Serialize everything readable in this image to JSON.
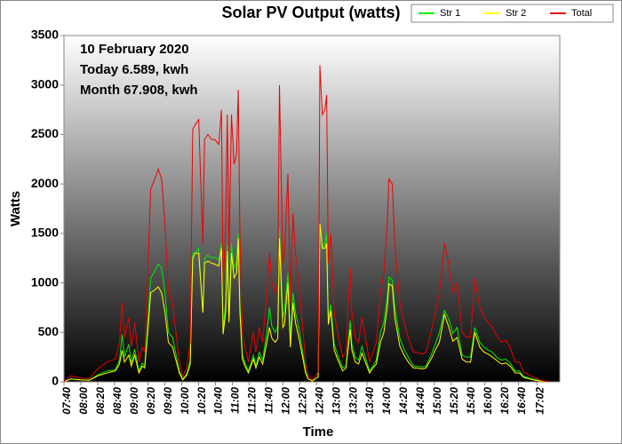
{
  "chart_data": {
    "type": "line",
    "title": "Solar PV Output (watts)",
    "x_label": "Time",
    "y_label": "Watts",
    "annotations": [
      "10 February 2020",
      "Today 6.589, kwh",
      "Month 67.908, kwh"
    ],
    "legend_position": "top-right",
    "background": "gradient",
    "xlim": [
      460,
      1049
    ],
    "ylim": [
      0,
      3500
    ],
    "yticks": [
      0,
      500,
      1000,
      1500,
      2000,
      2500,
      3000,
      3500
    ],
    "xticks": [
      {
        "value": 460,
        "label": "07:40"
      },
      {
        "value": 480,
        "label": "08:00"
      },
      {
        "value": 500,
        "label": "08:20"
      },
      {
        "value": 520,
        "label": "08:40"
      },
      {
        "value": 540,
        "label": "09:00"
      },
      {
        "value": 560,
        "label": "09:20"
      },
      {
        "value": 580,
        "label": "09:40"
      },
      {
        "value": 600,
        "label": "10:00"
      },
      {
        "value": 620,
        "label": "10:20"
      },
      {
        "value": 640,
        "label": "10:40"
      },
      {
        "value": 660,
        "label": "11:00"
      },
      {
        "value": 680,
        "label": "11:20"
      },
      {
        "value": 700,
        "label": "11:40"
      },
      {
        "value": 720,
        "label": "12:00"
      },
      {
        "value": 740,
        "label": "12:20"
      },
      {
        "value": 760,
        "label": "12:40"
      },
      {
        "value": 780,
        "label": "13:00"
      },
      {
        "value": 800,
        "label": "13:20"
      },
      {
        "value": 820,
        "label": "13:40"
      },
      {
        "value": 840,
        "label": "14:00"
      },
      {
        "value": 860,
        "label": "14:20"
      },
      {
        "value": 880,
        "label": "14:40"
      },
      {
        "value": 900,
        "label": "15:00"
      },
      {
        "value": 920,
        "label": "15:20"
      },
      {
        "value": 940,
        "label": "15:40"
      },
      {
        "value": 960,
        "label": "16:00"
      },
      {
        "value": 980,
        "label": "16:20"
      },
      {
        "value": 1000,
        "label": "16:40"
      },
      {
        "value": 1022,
        "label": "17:02"
      }
    ],
    "x": [
      460,
      468,
      479,
      490,
      500,
      511,
      521,
      526,
      529,
      532,
      537,
      540,
      544,
      549,
      553,
      556,
      560,
      563,
      568,
      572,
      576,
      580,
      584,
      589,
      593,
      597,
      601,
      606,
      610,
      613,
      616,
      620,
      625,
      627,
      631,
      635,
      639,
      644,
      647,
      649,
      652,
      654,
      656,
      659,
      662,
      665,
      667,
      669,
      672,
      675,
      679,
      685,
      688,
      692,
      696,
      701,
      704,
      707,
      711,
      714,
      716,
      720,
      722,
      726,
      729,
      732,
      735,
      739,
      743,
      747,
      750,
      755,
      762,
      764,
      767,
      770,
      772,
      774,
      777,
      781,
      785,
      791,
      795,
      800,
      802,
      806,
      810,
      814,
      819,
      823,
      827,
      831,
      836,
      840,
      844,
      846,
      850,
      853,
      859,
      864,
      869,
      875,
      880,
      885,
      890,
      896,
      901,
      906,
      912,
      917,
      922,
      927,
      933,
      938,
      943,
      948,
      954,
      959,
      964,
      969,
      975,
      980,
      985,
      990,
      996,
      1001,
      1006,
      1017,
      1028,
      1036
    ],
    "series": [
      {
        "name": "Str 1",
        "color": "#00ee00",
        "values": [
          0,
          30,
          20,
          15,
          70,
          110,
          120,
          220,
          480,
          250,
          380,
          190,
          330,
          110,
          190,
          160,
          650,
          1050,
          1120,
          1190,
          1150,
          900,
          500,
          450,
          280,
          110,
          30,
          80,
          220,
          1300,
          1300,
          1350,
          700,
          1250,
          1280,
          1250,
          1260,
          1230,
          1400,
          520,
          800,
          1380,
          700,
          1400,
          1150,
          1200,
          1500,
          800,
          270,
          190,
          110,
          270,
          160,
          300,
          220,
          500,
          750,
          560,
          500,
          560,
          1550,
          650,
          720,
          1100,
          450,
          900,
          700,
          550,
          330,
          110,
          30,
          10,
          50,
          1600,
          1350,
          1400,
          1500,
          620,
          780,
          380,
          270,
          140,
          160,
          620,
          380,
          250,
          220,
          360,
          220,
          110,
          160,
          220,
          500,
          600,
          850,
          1060,
          1030,
          750,
          440,
          330,
          250,
          160,
          160,
          150,
          160,
          270,
          380,
          500,
          720,
          640,
          490,
          550,
          270,
          250,
          250,
          550,
          400,
          350,
          320,
          300,
          240,
          220,
          230,
          190,
          110,
          110,
          55,
          30,
          5,
          0
        ]
      },
      {
        "name": "Str 2",
        "color": "#ffff00",
        "values": [
          0,
          30,
          20,
          15,
          60,
          90,
          110,
          180,
          320,
          200,
          270,
          160,
          270,
          90,
          160,
          140,
          550,
          900,
          930,
          960,
          900,
          700,
          400,
          350,
          220,
          90,
          20,
          70,
          180,
          1250,
          1300,
          1300,
          700,
          1200,
          1220,
          1200,
          1190,
          1170,
          1350,
          480,
          700,
          1320,
          600,
          1300,
          1050,
          1100,
          1450,
          700,
          230,
          160,
          90,
          230,
          140,
          250,
          180,
          400,
          550,
          440,
          400,
          440,
          1450,
          550,
          580,
          1000,
          350,
          800,
          600,
          450,
          270,
          90,
          30,
          10,
          50,
          1600,
          1350,
          1350,
          1400,
          580,
          720,
          320,
          230,
          110,
          140,
          530,
          320,
          200,
          180,
          290,
          180,
          90,
          140,
          180,
          400,
          500,
          750,
          990,
          970,
          650,
          360,
          270,
          200,
          140,
          140,
          130,
          140,
          230,
          320,
          400,
          680,
          560,
          410,
          450,
          230,
          200,
          200,
          500,
          350,
          300,
          280,
          250,
          210,
          180,
          190,
          160,
          90,
          90,
          45,
          20,
          5,
          0
        ]
      },
      {
        "name": "Total",
        "color": "#ee0000",
        "values": [
          0,
          60,
          40,
          30,
          130,
          200,
          230,
          400,
          800,
          450,
          650,
          350,
          600,
          200,
          350,
          300,
          1200,
          1950,
          2050,
          2150,
          2050,
          1600,
          900,
          800,
          500,
          200,
          50,
          150,
          400,
          2550,
          2600,
          2650,
          1400,
          2450,
          2500,
          2450,
          2450,
          2400,
          2750,
          1000,
          1500,
          2700,
          1300,
          2700,
          2200,
          2300,
          2950,
          1500,
          500,
          350,
          200,
          500,
          300,
          550,
          400,
          900,
          1300,
          1000,
          900,
          1000,
          3000,
          1200,
          1300,
          2100,
          800,
          1700,
          1300,
          1000,
          600,
          200,
          60,
          20,
          100,
          3200,
          2700,
          2750,
          2900,
          1200,
          1500,
          700,
          500,
          250,
          300,
          1150,
          700,
          450,
          400,
          650,
          400,
          200,
          300,
          400,
          900,
          1100,
          1600,
          2050,
          2000,
          1400,
          800,
          600,
          450,
          300,
          300,
          280,
          300,
          500,
          700,
          900,
          1400,
          1200,
          900,
          1000,
          500,
          450,
          450,
          1050,
          750,
          650,
          600,
          550,
          450,
          400,
          420,
          350,
          200,
          200,
          100,
          50,
          10,
          0
        ]
      }
    ]
  }
}
